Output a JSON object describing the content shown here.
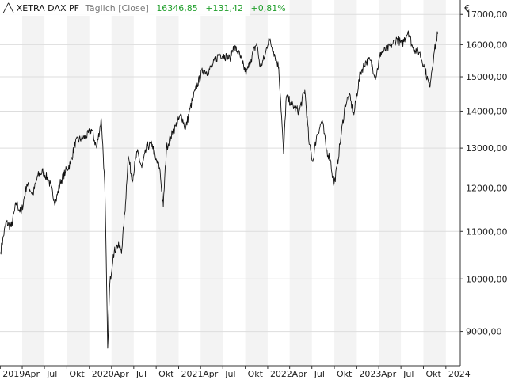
{
  "header": {
    "instrument": "XETRA DAX PF",
    "interval": "Täglich [Close]",
    "last": "16346,85",
    "change": "+131,42",
    "change_pct": "+0,81%",
    "currency": "€"
  },
  "colors": {
    "line": "#111111",
    "positive": "#1f9e2a",
    "muted": "#777777",
    "band": "#f3f3f3",
    "grid": "#dddddd",
    "axis": "#333333"
  },
  "chart_data": {
    "type": "line",
    "title": "XETRA DAX PF",
    "series": [
      {
        "name": "XETRA DAX PF",
        "x": [
          "2019-01-02",
          "2019-01-25",
          "2019-02-15",
          "2019-03-08",
          "2019-03-28",
          "2019-04-20",
          "2019-05-15",
          "2019-06-04",
          "2019-06-25",
          "2019-07-18",
          "2019-08-15",
          "2019-09-05",
          "2019-09-25",
          "2019-10-15",
          "2019-11-05",
          "2019-11-28",
          "2019-12-20",
          "2020-01-10",
          "2020-01-31",
          "2020-02-19",
          "2020-03-04",
          "2020-03-16",
          "2020-03-25",
          "2020-04-08",
          "2020-04-24",
          "2020-05-13",
          "2020-05-28",
          "2020-06-08",
          "2020-06-25",
          "2020-07-15",
          "2020-08-03",
          "2020-08-25",
          "2020-09-15",
          "2020-09-29",
          "2020-10-15",
          "2020-10-30",
          "2020-11-12",
          "2020-11-30",
          "2020-12-20",
          "2021-01-12",
          "2021-01-29",
          "2021-02-16",
          "2021-03-10",
          "2021-04-10",
          "2021-04-30",
          "2021-05-20",
          "2021-06-15",
          "2021-07-08",
          "2021-07-30",
          "2021-08-13",
          "2021-09-03",
          "2021-09-20",
          "2021-10-05",
          "2021-10-25",
          "2021-11-17",
          "2021-12-01",
          "2021-12-20",
          "2022-01-05",
          "2022-01-25",
          "2022-02-15",
          "2022-03-07",
          "2022-03-18",
          "2022-04-05",
          "2022-04-20",
          "2022-05-10",
          "2022-06-02",
          "2022-06-20",
          "2022-07-05",
          "2022-07-20",
          "2022-08-12",
          "2022-08-30",
          "2022-09-15",
          "2022-09-29",
          "2022-10-12",
          "2022-10-28",
          "2022-11-15",
          "2022-12-01",
          "2022-12-20",
          "2023-01-15",
          "2023-02-05",
          "2023-02-25",
          "2023-03-20",
          "2023-04-10",
          "2023-05-05",
          "2023-05-25",
          "2023-06-16",
          "2023-07-05",
          "2023-07-31",
          "2023-08-18",
          "2023-09-15",
          "2023-10-05",
          "2023-10-26",
          "2023-11-13",
          "2023-11-28"
        ],
        "values": [
          10550,
          11200,
          11100,
          11650,
          11400,
          12100,
          11850,
          12300,
          12400,
          12200,
          11650,
          12150,
          12400,
          12600,
          13150,
          13250,
          13300,
          13500,
          13000,
          13790,
          12100,
          8700,
          9900,
          10500,
          10700,
          10600,
          11600,
          12800,
          12200,
          12900,
          12500,
          13050,
          13100,
          12700,
          12500,
          11560,
          13000,
          13300,
          13600,
          13900,
          13500,
          14050,
          14600,
          15200,
          15150,
          15350,
          15700,
          15650,
          15550,
          15950,
          15750,
          15400,
          15100,
          15550,
          16050,
          15300,
          15600,
          16200,
          15800,
          15300,
          12850,
          14400,
          14250,
          14100,
          14000,
          14600,
          13100,
          12650,
          13300,
          13750,
          12950,
          12700,
          12050,
          12500,
          13300,
          14200,
          14450,
          13900,
          15100,
          15450,
          15500,
          15000,
          15750,
          15850,
          16000,
          16200,
          16000,
          16450,
          15900,
          15750,
          15300,
          14700,
          15700,
          16346.85
        ]
      }
    ],
    "xlabel": "",
    "ylabel": "€",
    "yticks": [
      {
        "value": 9000,
        "label": "9000,00"
      },
      {
        "value": 10000,
        "label": "10000,00"
      },
      {
        "value": 11000,
        "label": "11000,00"
      },
      {
        "value": 12000,
        "label": "12000,00"
      },
      {
        "value": 13000,
        "label": "13000,00"
      },
      {
        "value": 14000,
        "label": "14000,00"
      },
      {
        "value": 15000,
        "label": "15000,00"
      },
      {
        "value": 16000,
        "label": "16000,00"
      },
      {
        "value": 17000,
        "label": "17000,00"
      }
    ],
    "xticks": [
      {
        "date": "2019-01-01",
        "label": "2019"
      },
      {
        "date": "2019-04-01",
        "label": "Apr"
      },
      {
        "date": "2019-07-01",
        "label": "Jul"
      },
      {
        "date": "2019-10-01",
        "label": "Okt"
      },
      {
        "date": "2020-01-01",
        "label": "2020"
      },
      {
        "date": "2020-04-01",
        "label": "Apr"
      },
      {
        "date": "2020-07-01",
        "label": "Jul"
      },
      {
        "date": "2020-10-01",
        "label": "Okt"
      },
      {
        "date": "2021-01-01",
        "label": "2021"
      },
      {
        "date": "2021-04-01",
        "label": "Apr"
      },
      {
        "date": "2021-07-01",
        "label": "Jul"
      },
      {
        "date": "2021-10-01",
        "label": "Okt"
      },
      {
        "date": "2022-01-01",
        "label": "2022"
      },
      {
        "date": "2022-04-01",
        "label": "Apr"
      },
      {
        "date": "2022-07-01",
        "label": "Jul"
      },
      {
        "date": "2022-10-01",
        "label": "Okt"
      },
      {
        "date": "2023-01-01",
        "label": "2023"
      },
      {
        "date": "2023-04-01",
        "label": "Apr"
      },
      {
        "date": "2023-07-01",
        "label": "Jul"
      },
      {
        "date": "2023-10-01",
        "label": "Okt"
      },
      {
        "date": "2024-01-01",
        "label": "2024"
      }
    ],
    "xlim": [
      "2018-12-31",
      "2024-02-29"
    ],
    "ylim": [
      8400,
      17500
    ],
    "yscale": "log",
    "grid": true,
    "legend": "none"
  }
}
